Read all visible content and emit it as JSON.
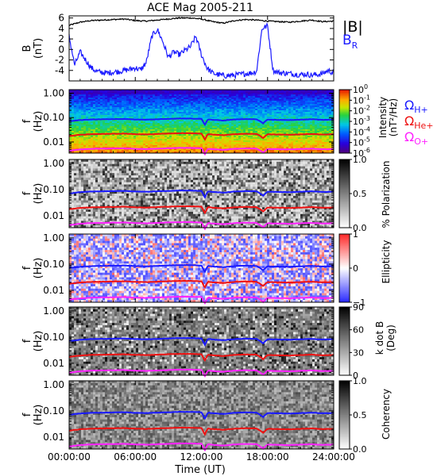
{
  "chart_data": [
    {
      "type": "line",
      "title": "ACE Mag 2005-211",
      "ylabel": "B",
      "yunit": "(nT)",
      "ylim": [
        -6,
        6.4
      ],
      "yticks": [
        6,
        4,
        2,
        0,
        -2,
        -4
      ],
      "xlim": [
        0,
        24
      ],
      "series": [
        {
          "name": "|B|",
          "color": "#000000",
          "x": [
            0,
            1,
            2,
            3,
            4,
            5,
            6,
            7,
            8,
            9,
            10,
            11,
            12,
            13,
            14,
            15,
            16,
            17,
            18,
            19,
            20,
            21,
            22,
            23,
            24
          ],
          "y": [
            4.6,
            5.2,
            5.5,
            5.6,
            5.7,
            5.8,
            5.5,
            5.4,
            5.6,
            5.8,
            6.0,
            6.0,
            5.8,
            5.3,
            5.0,
            5.5,
            5.7,
            5.6,
            5.4,
            5.3,
            5.2,
            5.4,
            5.6,
            5.3,
            5.4
          ]
        },
        {
          "name": "B_R",
          "label_main": "B",
          "label_sub": "R",
          "color": "#1a1aff",
          "x": [
            0,
            0.5,
            1,
            1.5,
            2,
            2.5,
            3,
            3.5,
            4,
            4.5,
            5,
            5.5,
            6,
            6.5,
            7,
            7.5,
            8,
            8.5,
            9,
            9.5,
            10,
            10.5,
            11,
            11.5,
            12,
            12.5,
            13,
            13.5,
            14,
            14.5,
            15,
            15.5,
            16,
            16.5,
            17,
            17.5,
            18,
            18.5,
            19,
            19.5,
            20,
            20.5,
            21,
            21.5,
            22,
            22.5,
            23,
            23.5,
            24
          ],
          "y": [
            2.5,
            -3.0,
            -0.5,
            -2.0,
            -3.5,
            -4.2,
            -4.4,
            -4.5,
            -4.3,
            -4.2,
            -4.0,
            -3.8,
            -3.5,
            -3.9,
            -2.5,
            2.5,
            3.8,
            1.5,
            -1.5,
            -0.5,
            -1.0,
            -0.2,
            0.5,
            2.5,
            -1.0,
            -3.5,
            -4.5,
            -4.8,
            -5.0,
            -5.0,
            -4.9,
            -4.8,
            -4.6,
            -4.5,
            -4.2,
            4.0,
            4.5,
            -4.0,
            -4.4,
            -4.5,
            -4.6,
            -4.7,
            -4.8,
            -4.7,
            -4.9,
            -4.8,
            -4.6,
            -4.0,
            -4.5
          ]
        }
      ]
    },
    {
      "type": "heatmap",
      "ylabel": "f",
      "yunit": "(Hz)",
      "yscale": "log",
      "ylim": [
        0.0035,
        1.4
      ],
      "yticks": [
        "1.00",
        "0.10",
        "0.01"
      ],
      "colorbar": {
        "label": "Intensity (nT²/Hz)",
        "label_parts": [
          "Intensity",
          "(nT²/Hz)"
        ],
        "colormap": "rainbow",
        "scale": "log",
        "ticks": [
          {
            "value": 1,
            "label": "10",
            "exp": "0"
          },
          {
            "value": 0.1,
            "label": "10",
            "exp": "-1"
          },
          {
            "value": 0.01,
            "label": "10",
            "exp": "-2"
          },
          {
            "value": 0.001,
            "label": "10",
            "exp": "-3"
          },
          {
            "value": 0.0001,
            "label": "10",
            "exp": "-4"
          },
          {
            "value": 1e-05,
            "label": "10",
            "exp": "-5"
          },
          {
            "value": 1e-06,
            "label": "10",
            "exp": "-6"
          }
        ]
      },
      "legend": [
        {
          "main": "Ω",
          "sub": "H+",
          "color": "#1a1aff"
        },
        {
          "main": "Ω",
          "sub": "He+",
          "color": "#ee1111"
        },
        {
          "main": "Ω",
          "sub": "O+",
          "color": "#ff22ff"
        }
      ]
    },
    {
      "type": "heatmap",
      "ylabel": "f",
      "yunit": "(Hz)",
      "colorbar": {
        "label": "% Polarization",
        "colormap": "gray",
        "ticks": [
          "1.0",
          "0.5",
          "0.0"
        ]
      }
    },
    {
      "type": "heatmap",
      "ylabel": "f",
      "yunit": "(Hz)",
      "colorbar": {
        "label": "Ellipticity",
        "colormap": "bwr",
        "ticks": [
          "1",
          "0",
          "−1"
        ]
      }
    },
    {
      "type": "heatmap",
      "ylabel": "f",
      "yunit": "(Hz)",
      "colorbar": {
        "label": "k dot B",
        "label2": "(Deg)",
        "colormap": "gray",
        "ticks": [
          "90",
          "60",
          "30",
          "0"
        ]
      }
    },
    {
      "type": "heatmap",
      "ylabel": "f",
      "yunit": "(Hz)",
      "colorbar": {
        "label": "Coherency",
        "colormap": "gray",
        "ticks": [
          "1.0",
          "0.5",
          "0.0"
        ]
      }
    }
  ],
  "gyro_lines": {
    "x": [
      0,
      1,
      2,
      3,
      4,
      5,
      6,
      7,
      8,
      9,
      10,
      11,
      12,
      12.3,
      12.6,
      13,
      14,
      15,
      16,
      17,
      17.6,
      18,
      19,
      20,
      21,
      22,
      23,
      24
    ],
    "bmag": [
      4.6,
      5.2,
      5.5,
      5.6,
      5.7,
      5.8,
      5.5,
      5.4,
      5.6,
      5.8,
      6.0,
      6.0,
      5.8,
      3.2,
      5.6,
      5.3,
      5.0,
      5.5,
      5.7,
      5.6,
      3.8,
      5.4,
      5.3,
      5.2,
      5.4,
      5.6,
      5.3,
      5.4
    ],
    "H+": {
      "coef": 0.01525
    },
    "He+": {
      "coef": 0.00381
    },
    "O+": {
      "coef": 0.000953
    }
  },
  "xaxis": {
    "title": "Time (UT)",
    "ticks": [
      {
        "value": 0,
        "label": "00:00:00"
      },
      {
        "value": 6,
        "label": "06:00:00"
      },
      {
        "value": 12,
        "label": "12:00:00"
      },
      {
        "value": 18,
        "label": "18:00:00"
      },
      {
        "value": 24,
        "label": "24:00:00"
      }
    ]
  }
}
